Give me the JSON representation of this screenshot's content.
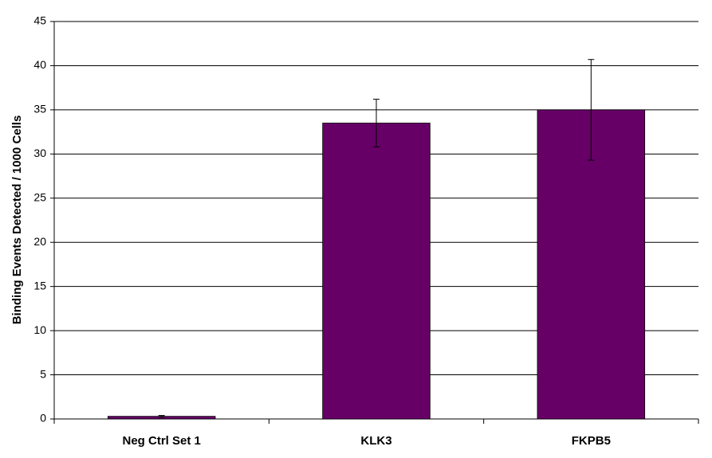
{
  "chart_data": {
    "type": "bar",
    "y_label": "Binding Events Detected / 1000 Cells",
    "categories": [
      "Neg Ctrl Set 1",
      "KLK3",
      "FKPB5"
    ],
    "values": [
      0.3,
      33.5,
      35
    ],
    "errors": [
      0.1,
      2.7,
      5.7
    ],
    "color": "#660066",
    "ylim": [
      0,
      45
    ],
    "yticks": [
      0,
      5,
      10,
      15,
      20,
      25,
      30,
      35,
      40,
      45
    ],
    "grid": true
  }
}
